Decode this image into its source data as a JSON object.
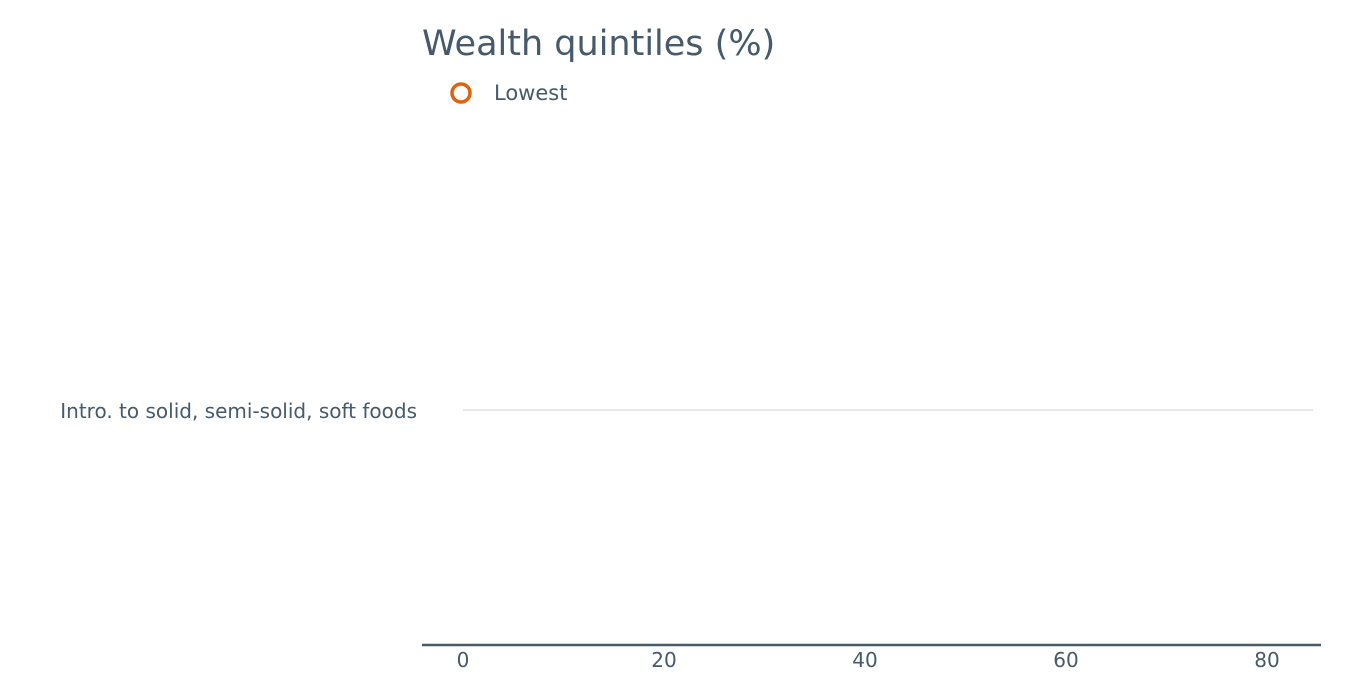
{
  "chart_data": {
    "type": "scatter",
    "title": "Wealth quintiles (%)",
    "xlabel": "",
    "ylabel": "",
    "xlim": [
      -5,
      85
    ],
    "xticks": [
      0,
      20,
      40,
      60,
      80
    ],
    "categories": [
      "Intro. to solid, semi-solid, soft foods"
    ],
    "series": [
      {
        "name": "Lowest",
        "color": "#e0620d",
        "marker": "hollow-circle",
        "values": []
      }
    ],
    "legend": "top-left",
    "grid": false
  },
  "colors": {
    "text": "#455a6a",
    "axis": "#455a6a",
    "guide": "#d0d0d0"
  }
}
